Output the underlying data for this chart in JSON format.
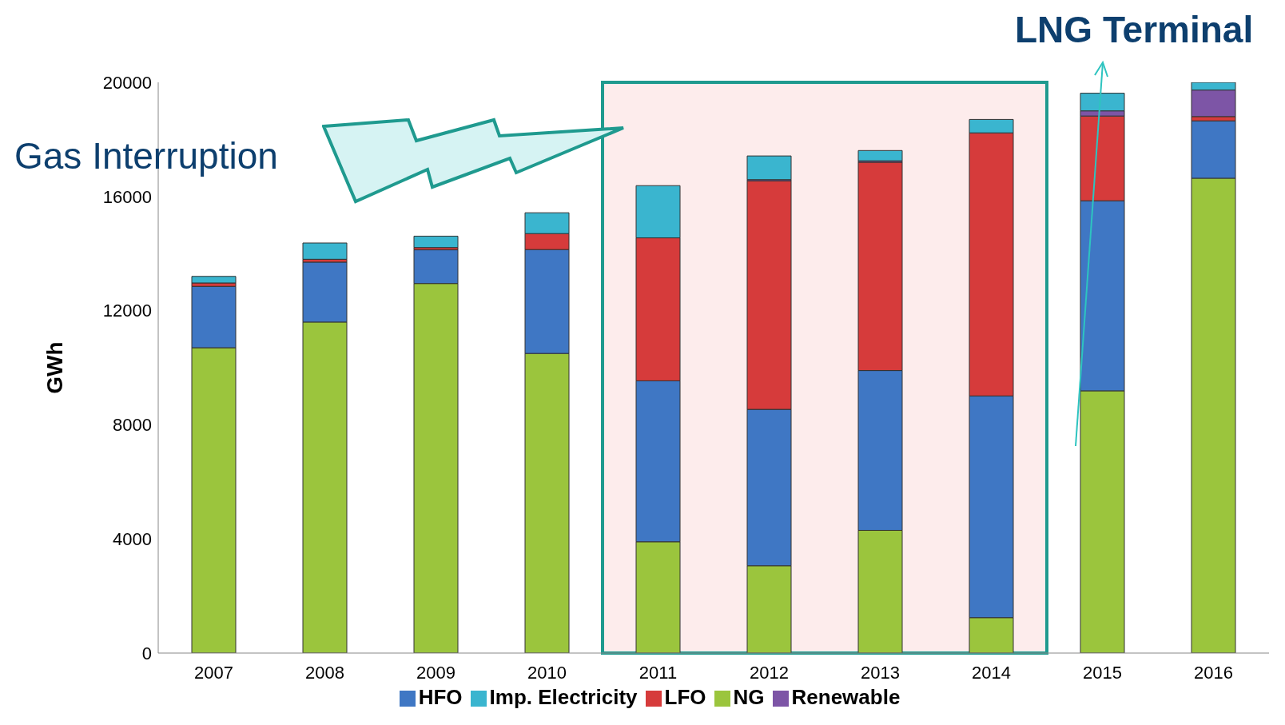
{
  "chart_data": {
    "type": "bar",
    "stacked": true,
    "ylabel": "GWh",
    "categories": [
      "2007",
      "2008",
      "2009",
      "2010",
      "2011",
      "2012",
      "2013",
      "2014",
      "2015",
      "2016"
    ],
    "series": [
      {
        "name": "NG",
        "color": "#9bc53d",
        "values": [
          10700,
          11600,
          12950,
          10500,
          3900,
          3060,
          4300,
          1240,
          9190,
          16640
        ]
      },
      {
        "name": "HFO",
        "color": "#3f77c4",
        "values": [
          2150,
          2100,
          1180,
          3640,
          5640,
          5480,
          5600,
          7770,
          6660,
          2010
        ]
      },
      {
        "name": "LFO",
        "color": "#d63b3b",
        "values": [
          120,
          100,
          80,
          560,
          5010,
          8010,
          7300,
          9220,
          2970,
          150
        ]
      },
      {
        "name": "Renewable",
        "color": "#7d55a6",
        "values": [
          0,
          0,
          0,
          0,
          0,
          40,
          50,
          0,
          180,
          930
        ]
      },
      {
        "name": "Imp. Electricity",
        "color": "#3ab5cf",
        "values": [
          230,
          570,
          400,
          730,
          1830,
          830,
          360,
          470,
          620,
          270
        ]
      }
    ],
    "ylim": [
      0,
      20000
    ],
    "yticks": [
      0,
      4000,
      8000,
      12000,
      16000,
      20000
    ],
    "grid": false,
    "legend": "bottom",
    "bands": [
      {
        "axis": "x",
        "from": "2011",
        "to": "2014",
        "color": "#fdecec"
      }
    ],
    "annotations": [
      "Gas Interruption",
      "LNG Terminal"
    ]
  }
}
